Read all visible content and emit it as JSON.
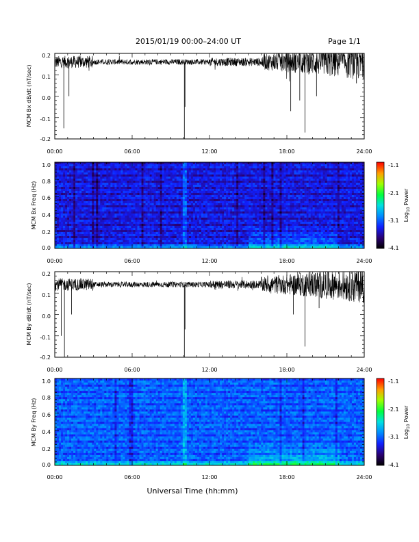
{
  "header": {
    "title": "2015/01/19   00:00–24:00 UT",
    "page": "Page 1/1"
  },
  "footer": {
    "xlabel": "Universal Time (hh:mm)"
  },
  "colorbar": {
    "ticks": [
      "-1.1",
      "-2.1",
      "-3.1",
      "-4.1"
    ],
    "label_prefix": "Log",
    "label_sub": "10",
    "label_suffix": " Power",
    "range": [
      -4.1,
      -1.1
    ]
  },
  "chart_data": [
    {
      "type": "line",
      "ylabel": "MCM Bx dB/dt (nT/sec)",
      "xlim": [
        0,
        24
      ],
      "ylim": [
        -0.2,
        0.2
      ],
      "xticks": [
        "00:00",
        "06:00",
        "12:00",
        "18:00",
        "24:00"
      ],
      "yticks": [
        "0.2",
        "0.1",
        "0.0",
        "-0.1",
        "-0.2"
      ],
      "baseline": 0.16,
      "spikes": [
        {
          "x": 0.7,
          "y": -0.15
        },
        {
          "x": 1.1,
          "y": 0.0
        },
        {
          "x": 10.05,
          "y": -0.2
        },
        {
          "x": 10.1,
          "y": -0.05
        },
        {
          "x": 18.3,
          "y": -0.07
        },
        {
          "x": 19.0,
          "y": -0.02
        },
        {
          "x": 19.4,
          "y": -0.17
        },
        {
          "x": 20.3,
          "y": 0.0
        },
        {
          "x": 23.4,
          "y": 0.06
        }
      ]
    },
    {
      "type": "heatmap",
      "ylabel": "MCM Bx Freq (Hz)",
      "xlim": [
        0,
        24
      ],
      "ylim": [
        0.0,
        1.0
      ],
      "xticks": [
        "00:00",
        "06:00",
        "12:00",
        "18:00",
        "24:00"
      ],
      "yticks": [
        "1.0",
        "0.8",
        "0.6",
        "0.4",
        "0.2",
        "0.0"
      ],
      "clim": [
        -4.1,
        -1.1
      ]
    },
    {
      "type": "line",
      "ylabel": "MCM By dB/dt (nT/sec)",
      "xlim": [
        0,
        24
      ],
      "ylim": [
        -0.2,
        0.2
      ],
      "xticks": [
        "00:00",
        "06:00",
        "12:00",
        "18:00",
        "24:00"
      ],
      "yticks": [
        "0.2",
        "0.1",
        "0.0",
        "-0.1",
        "-0.2"
      ],
      "baseline": 0.14,
      "spikes": [
        {
          "x": 0.5,
          "y": -0.1
        },
        {
          "x": 0.75,
          "y": -0.2
        },
        {
          "x": 1.3,
          "y": 0.0
        },
        {
          "x": 10.05,
          "y": -0.2
        },
        {
          "x": 10.1,
          "y": -0.07
        },
        {
          "x": 18.5,
          "y": 0.0
        },
        {
          "x": 19.4,
          "y": -0.15
        },
        {
          "x": 20.5,
          "y": 0.03
        },
        {
          "x": 23.2,
          "y": 0.06
        }
      ]
    },
    {
      "type": "heatmap",
      "ylabel": "MCM By Freq (Hz)",
      "xlim": [
        0,
        24
      ],
      "ylim": [
        0.0,
        1.0
      ],
      "xticks": [
        "00:00",
        "06:00",
        "12:00",
        "18:00",
        "24:00"
      ],
      "yticks": [
        "1.0",
        "0.8",
        "0.6",
        "0.4",
        "0.2",
        "0.0"
      ],
      "clim": [
        -4.1,
        -1.1
      ]
    }
  ]
}
